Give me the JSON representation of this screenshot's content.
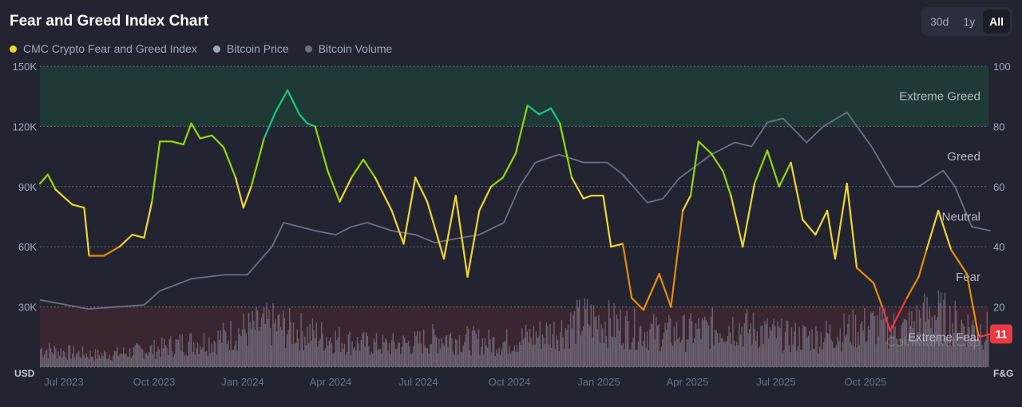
{
  "title": "Fear and Greed Index Chart",
  "legend": [
    {
      "label": "CMC Crypto Fear and Greed Index",
      "color": "#f3d42f"
    },
    {
      "label": "Bitcoin Price",
      "color": "#a1a7bb"
    },
    {
      "label": "Bitcoin Volume",
      "color": "#6b6f80"
    }
  ],
  "range_buttons": [
    {
      "label": "30d"
    },
    {
      "label": "1y"
    },
    {
      "label": "All",
      "active": true
    }
  ],
  "current_value": "11",
  "watermark": "CoinMarketCap",
  "chart_data": {
    "type": "line",
    "title": "Fear and Greed Index Chart",
    "left_axis": {
      "label": "USD",
      "ticks": [
        "150K",
        "120K",
        "90K",
        "60K",
        "30K"
      ],
      "range": [
        0,
        150000
      ]
    },
    "right_axis": {
      "label": "F&G",
      "ticks": [
        "100",
        "80",
        "60",
        "40",
        "20"
      ],
      "range": [
        0,
        100
      ]
    },
    "x_ticks": [
      "Jul 2023",
      "Oct 2023",
      "Jan 2024",
      "Apr 2024",
      "Jul 2024",
      "Oct 2024",
      "Jan 2025",
      "Apr 2025",
      "Jul 2025",
      "Oct 2025"
    ],
    "x_range_days": [
      0,
      965
    ],
    "zones": [
      {
        "label": "Extreme Greed",
        "from": 80,
        "to": 100,
        "color": "#1f3a36"
      },
      {
        "label": "Greed",
        "at": 70
      },
      {
        "label": "Neutral",
        "at": 50
      },
      {
        "label": "Fear",
        "at": 30
      },
      {
        "label": "Extreme Fear",
        "from": 0,
        "to": 20,
        "color": "#3a2631"
      }
    ],
    "fear_greed": {
      "day": [
        0,
        8,
        16,
        33,
        45,
        50,
        65,
        81,
        94,
        106,
        114,
        122,
        134,
        146,
        154,
        163,
        175,
        187,
        199,
        207,
        215,
        228,
        240,
        252,
        264,
        272,
        280,
        293,
        305,
        317,
        329,
        341,
        358,
        370,
        382,
        394,
        411,
        423,
        435,
        447,
        459,
        471,
        484,
        496,
        508,
        520,
        529,
        541,
        553,
        561,
        573,
        581,
        593,
        602,
        614,
        630,
        642,
        654,
        662,
        670,
        683,
        695,
        703,
        715,
        727,
        740,
        752,
        764,
        776,
        789,
        801,
        809,
        821,
        831,
        848,
        857,
        865,
        882,
        894,
        902,
        914,
        927,
        943,
        955,
        967
      ],
      "values": [
        61,
        64,
        59,
        54,
        53,
        37,
        37,
        40,
        44,
        43,
        55,
        75,
        75,
        74,
        81,
        76,
        77,
        73,
        63,
        53,
        60,
        76,
        85,
        92,
        84,
        81,
        80,
        65,
        55,
        63,
        69,
        63,
        52,
        41,
        63,
        55,
        36,
        57,
        30,
        52,
        60,
        63,
        71,
        87,
        84,
        86,
        81,
        63,
        56,
        57,
        57,
        40,
        41,
        23,
        19,
        31,
        20,
        52,
        57,
        75,
        71,
        65,
        57,
        40,
        61,
        72,
        60,
        68,
        49,
        44,
        52,
        36,
        61,
        33,
        28,
        20,
        12,
        23,
        30,
        39,
        52,
        39,
        31,
        10,
        11
      ]
    },
    "bitcoin_price": {
      "day": [
        0,
        49,
        106,
        122,
        154,
        187,
        211,
        236,
        248,
        264,
        280,
        301,
        317,
        333,
        358,
        382,
        402,
        423,
        447,
        472,
        488,
        504,
        528,
        553,
        577,
        593,
        618,
        634,
        650,
        683,
        707,
        724,
        740,
        756,
        780,
        797,
        821,
        846,
        870,
        894,
        919,
        931,
        948,
        967
      ],
      "values": [
        33500,
        29000,
        31000,
        38000,
        44000,
        46000,
        46000,
        60000,
        72000,
        70000,
        68000,
        66000,
        70000,
        72000,
        68000,
        66000,
        62000,
        64000,
        66000,
        72000,
        90000,
        102000,
        106000,
        102000,
        102000,
        96000,
        82000,
        84000,
        94000,
        106000,
        112000,
        110000,
        122000,
        124000,
        112000,
        120000,
        127000,
        110000,
        90000,
        90000,
        98000,
        90000,
        70000,
        68000
      ]
    },
    "bitcoin_volume_relative": [
      0.15,
      0.12,
      0.1,
      0.12,
      0.15,
      0.2,
      0.22,
      0.3,
      0.35,
      0.3,
      0.25,
      0.2,
      0.18,
      0.2,
      0.25,
      0.22,
      0.2,
      0.25,
      0.3,
      0.4,
      0.35,
      0.3,
      0.28,
      0.3,
      0.35,
      0.3,
      0.25,
      0.25,
      0.3,
      0.35,
      0.3,
      0.45,
      0.35,
      0.3
    ]
  }
}
